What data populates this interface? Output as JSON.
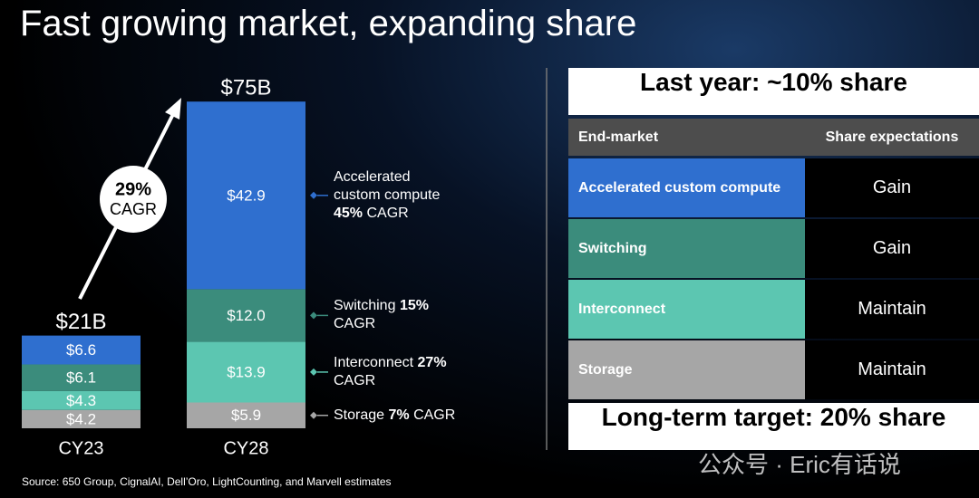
{
  "title": "Fast growing market, expanding share",
  "chart_data": {
    "type": "bar",
    "stacked": true,
    "categories": [
      "CY23",
      "CY28"
    ],
    "series": [
      {
        "name": "Storage",
        "color": "#a6a6a6",
        "values": [
          4.2,
          5.9
        ],
        "value_labels": [
          "$4.2",
          "$5.9"
        ],
        "cagr_rate": "7%",
        "cagr_text": "CAGR"
      },
      {
        "name": "Interconnect",
        "color": "#5cc6b1",
        "values": [
          4.3,
          13.9
        ],
        "value_labels": [
          "$4.3",
          "$13.9"
        ],
        "cagr_rate": "27%",
        "cagr_text": "CAGR"
      },
      {
        "name": "Switching",
        "color": "#3b8c7c",
        "values": [
          6.1,
          12.0
        ],
        "value_labels": [
          "$6.1",
          "$12.0"
        ],
        "cagr_rate": "15%",
        "cagr_text": "CAGR"
      },
      {
        "name": "Accelerated custom compute",
        "color": "#2f6fcf",
        "values": [
          6.6,
          42.9
        ],
        "value_labels": [
          "$6.6",
          "$42.9"
        ],
        "cagr_rate": "45%",
        "cagr_text": "CAGR"
      }
    ],
    "totals": {
      "values": [
        21,
        75
      ],
      "value_labels": [
        "$21B",
        "$75B"
      ]
    },
    "growth": {
      "rate": "29%",
      "label": "CAGR"
    }
  },
  "table": {
    "title": "Last year: ~10% share",
    "header": [
      "End-market",
      "Share expectations"
    ],
    "rows": [
      [
        "Accelerated custom compute",
        "Gain"
      ],
      [
        "Switching",
        "Gain"
      ],
      [
        "Interconnect",
        "Maintain"
      ],
      [
        "Storage",
        "Maintain"
      ]
    ],
    "footer": "Long-term target: 20% share"
  },
  "source": "Source: 650 Group, CignalAI, Dell’Oro, LightCounting, and Marvell estimates",
  "watermark": "公众号 · Eric有话说"
}
